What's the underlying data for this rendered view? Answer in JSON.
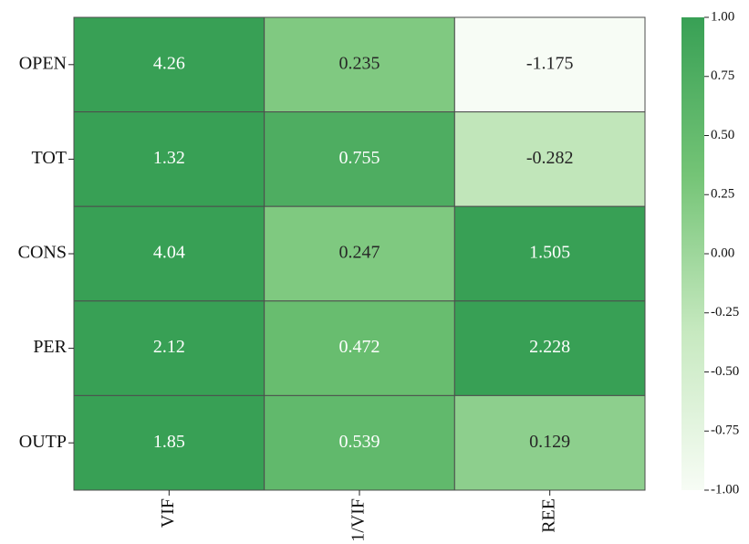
{
  "chart_data": {
    "type": "heatmap",
    "rows": [
      "OPEN",
      "TOT",
      "CONS",
      "PER",
      "OUTP"
    ],
    "columns": [
      "VIF",
      "1/VIF",
      "REE"
    ],
    "values": [
      [
        4.26,
        0.235,
        -1.175
      ],
      [
        1.32,
        0.755,
        -0.282
      ],
      [
        4.04,
        0.247,
        1.505
      ],
      [
        2.12,
        0.472,
        2.228
      ],
      [
        1.85,
        0.539,
        0.129
      ]
    ],
    "colormap": [
      "#f7fcf5",
      "#c7e9c0",
      "#74c476",
      "#38a055"
    ],
    "zlim": [
      -1,
      1
    ],
    "zticks": [
      {
        "value": -1,
        "label": "-1.00"
      },
      {
        "value": -0.75,
        "label": "-0.75"
      },
      {
        "value": -0.5,
        "label": "-0.50"
      },
      {
        "value": -0.25,
        "label": "-0.25"
      },
      {
        "value": 0,
        "label": "0.00"
      },
      {
        "value": 0.25,
        "label": "0.25"
      },
      {
        "value": 0.5,
        "label": "0.50"
      },
      {
        "value": 0.75,
        "label": "0.75"
      },
      {
        "value": 1,
        "label": "1.00"
      }
    ]
  }
}
